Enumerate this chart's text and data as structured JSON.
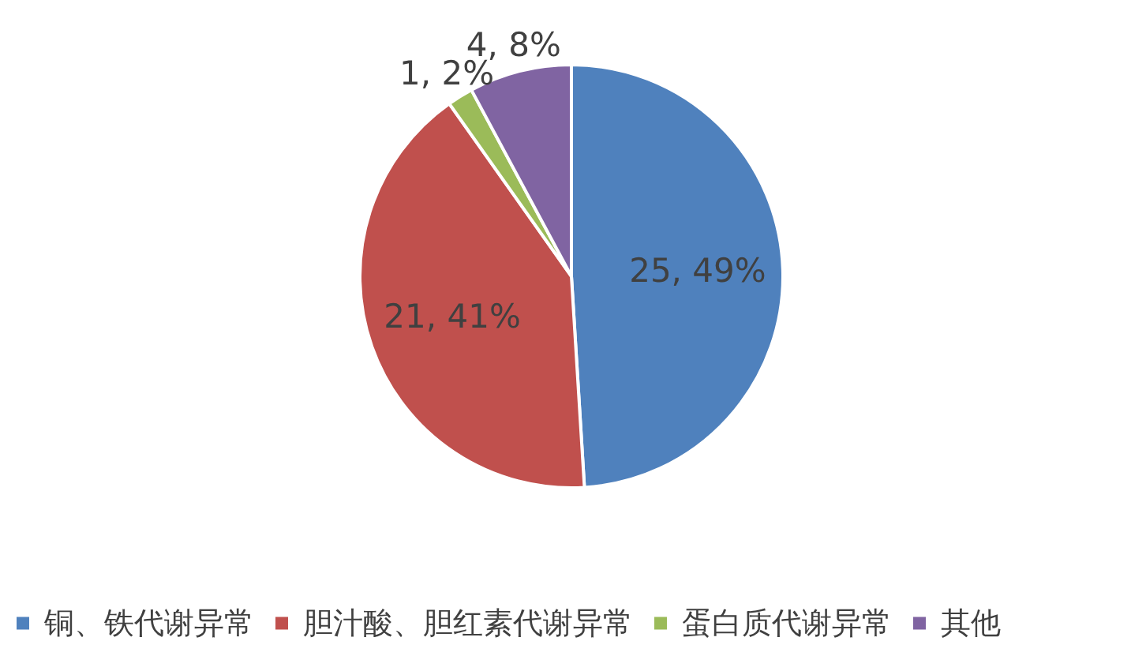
{
  "chart_data": {
    "type": "pie",
    "categories": [
      "铜、铁代谢异常",
      "胆汁酸、胆红素代谢异常",
      "蛋白质代谢异常",
      "其他"
    ],
    "values": [
      25,
      21,
      1,
      4
    ],
    "colors": [
      "#4f81bd",
      "#c0504d",
      "#9bbb59",
      "#8064a2"
    ],
    "value_labels": [
      "25, 49%",
      "21, 41%",
      "1, 2%",
      "4, 8%"
    ],
    "legend": "bottom"
  }
}
